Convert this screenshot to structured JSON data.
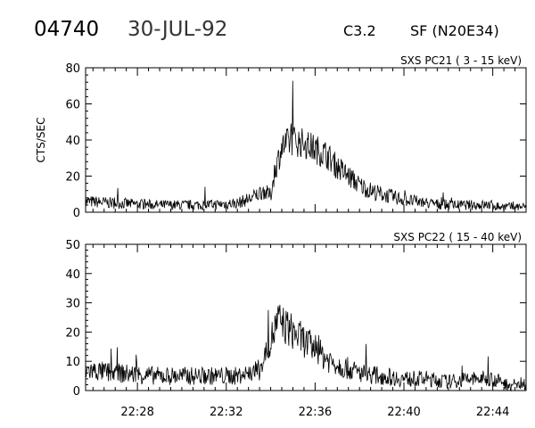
{
  "header": {
    "event_id": "04740",
    "date": "30-JUL-92",
    "goes_class": "C3.2",
    "flare": "SF (N20E34)"
  },
  "colors": {
    "ink": "#000000",
    "background": "#ffffff"
  },
  "chart_data": [
    {
      "type": "line",
      "title": "SXS PC21  (  3 - 15 keV)",
      "ylabel": "CTS/SEC",
      "xlabel": "",
      "ylim": [
        0,
        80
      ],
      "yticks": [
        0,
        20,
        40,
        60,
        80
      ],
      "xlim": [
        "22:25:40",
        "22:45:30"
      ],
      "xtick_labels": [
        "22:28",
        "22:32",
        "22:36",
        "22:40",
        "22:44"
      ],
      "grid": false,
      "series": [
        {
          "values_description": "count rate vs time (key points, noisy ±4 CTS/SEC around baseline)",
          "x": [
            "22:25:40",
            "22:27:00",
            "22:29:00",
            "22:31:00",
            "22:32:30",
            "22:33:10",
            "22:33:40",
            "22:34:00",
            "22:34:10",
            "22:34:30",
            "22:35:00",
            "22:35:30",
            "22:36:00",
            "22:36:30",
            "22:37:00",
            "22:37:30",
            "22:38:00",
            "22:38:30",
            "22:39:00",
            "22:40:00",
            "22:41:00",
            "22:42:00",
            "22:43:00",
            "22:44:00",
            "22:44:20",
            "22:44:40",
            "22:45:30"
          ],
          "y": [
            6,
            5,
            4,
            4,
            5,
            8,
            12,
            9,
            22,
            36,
            40,
            38,
            35,
            32,
            25,
            20,
            15,
            12,
            10,
            7,
            5,
            4,
            4,
            4,
            3,
            3,
            3
          ]
        }
      ]
    },
    {
      "type": "line",
      "title": "SXS PC22  ( 15 - 40 keV)",
      "ylabel": "",
      "xlabel": "",
      "ylim": [
        0,
        50
      ],
      "yticks": [
        0,
        10,
        20,
        30,
        40,
        50
      ],
      "xlim": [
        "22:25:40",
        "22:45:30"
      ],
      "xtick_labels": [
        "22:28",
        "22:32",
        "22:36",
        "22:40",
        "22:44"
      ],
      "grid": false,
      "series": [
        {
          "values_description": "count rate vs time (key points, noisy ±3 CTS/SEC around baseline)",
          "x": [
            "22:25:40",
            "22:27:00",
            "22:29:00",
            "22:31:00",
            "22:32:30",
            "22:33:30",
            "22:34:00",
            "22:34:20",
            "22:34:40",
            "22:35:00",
            "22:35:30",
            "22:36:00",
            "22:36:30",
            "22:37:00",
            "22:38:00",
            "22:39:00",
            "22:40:00",
            "22:41:00",
            "22:42:00",
            "22:43:00",
            "22:44:00",
            "22:44:40",
            "22:45:30"
          ],
          "y": [
            7,
            6,
            5,
            5,
            5,
            7,
            17,
            24,
            22,
            20,
            17,
            14,
            11,
            9,
            6,
            5,
            4,
            4,
            3,
            4,
            4,
            2,
            2
          ]
        }
      ]
    }
  ]
}
